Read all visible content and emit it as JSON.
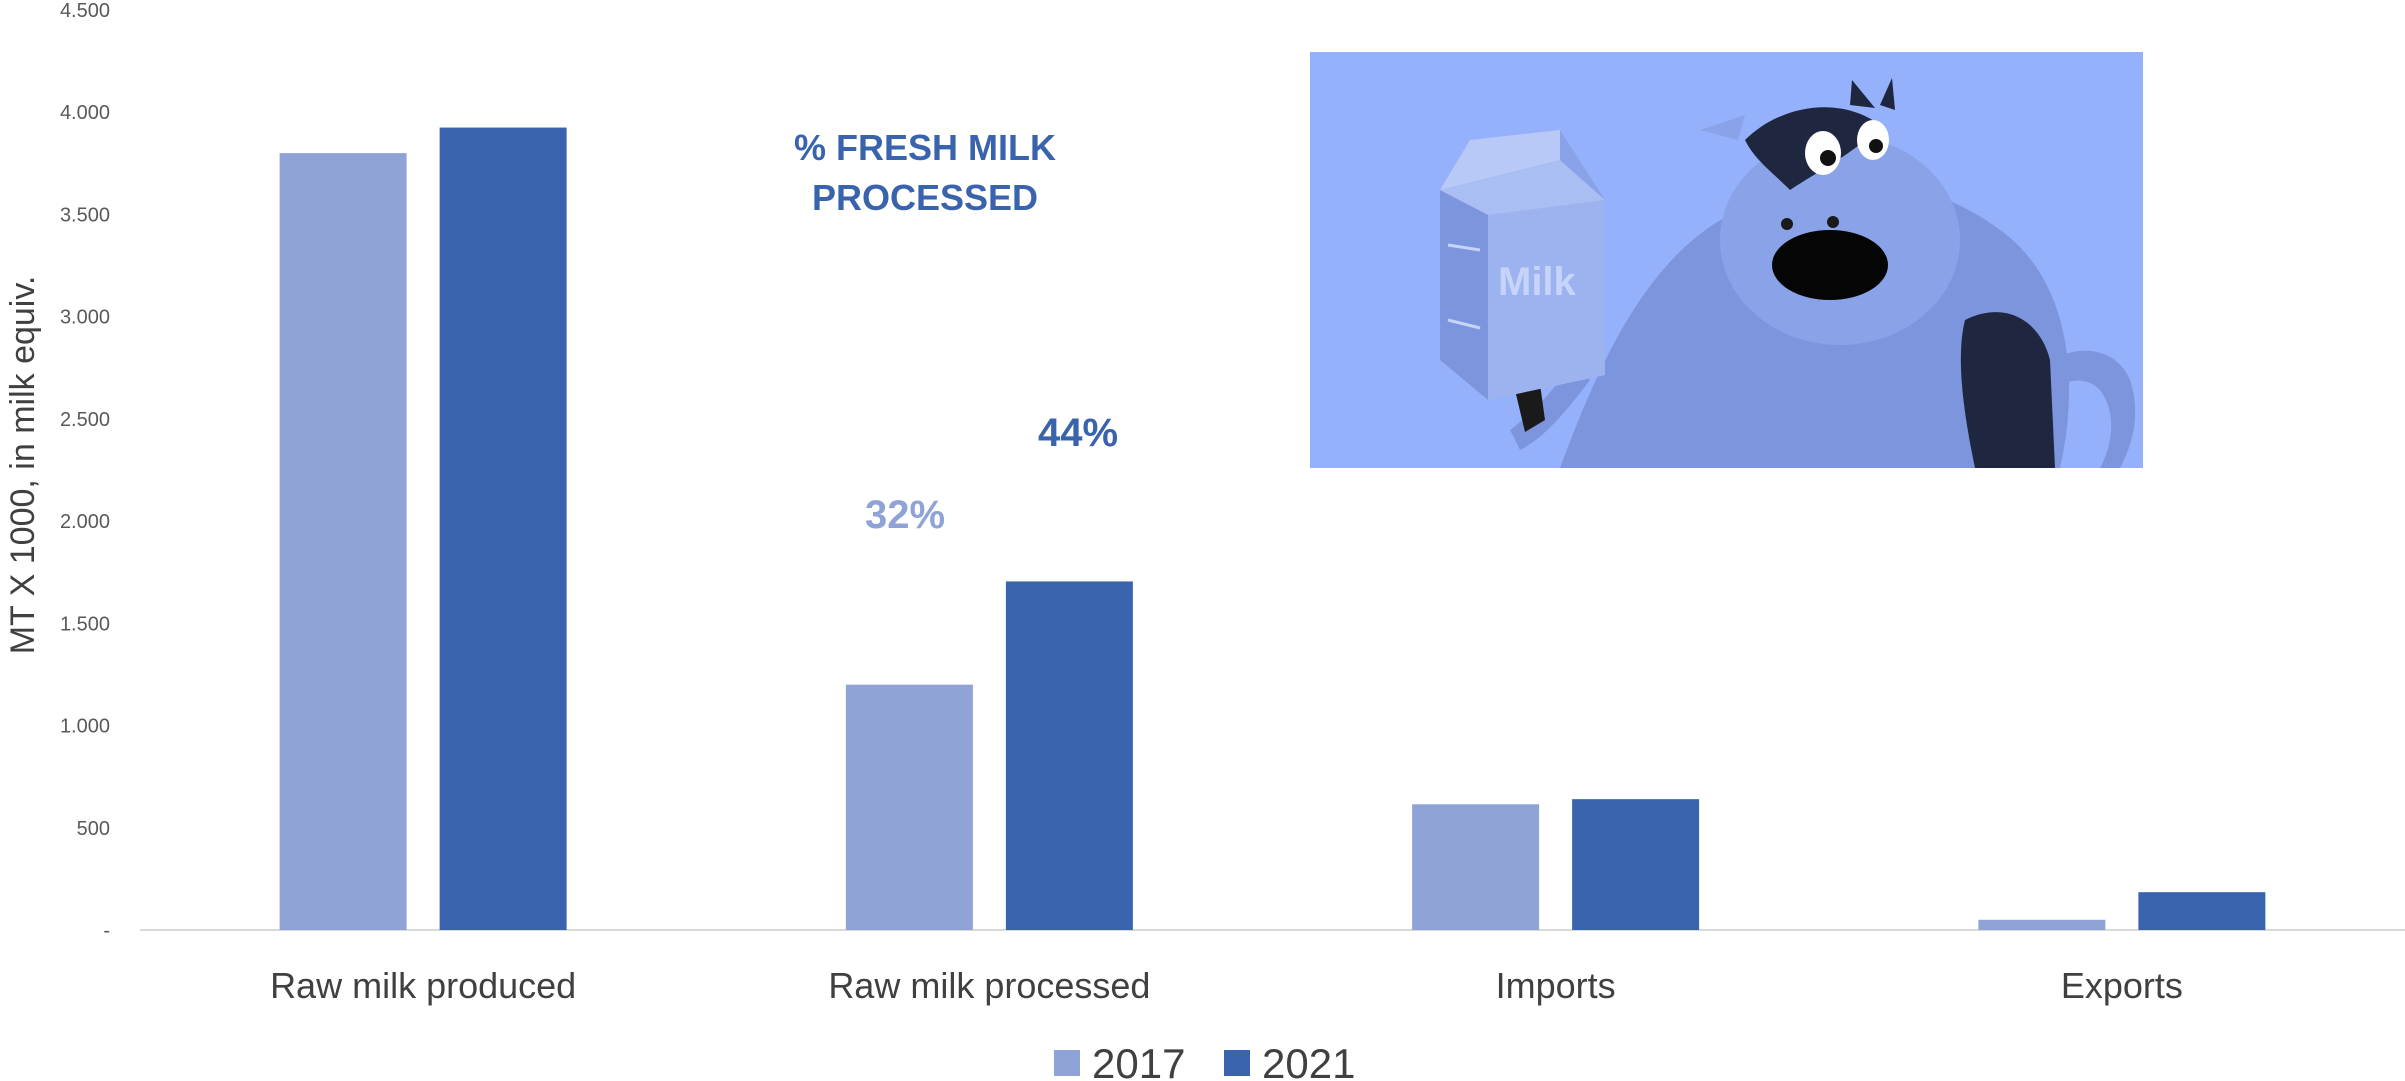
{
  "chart_data": {
    "type": "bar",
    "categories": [
      "Raw milk produced",
      "Raw milk processed",
      "Imports",
      "Exports"
    ],
    "series": [
      {
        "name": "2017",
        "color": "#8fa3d6",
        "values": [
          3800,
          1200,
          615,
          50
        ]
      },
      {
        "name": "2021",
        "color": "#3a63ad",
        "values": [
          3925,
          1705,
          640,
          185
        ]
      }
    ],
    "ylabel": "MT X 1000, in milk equiv.",
    "ylim": [
      0,
      4500
    ],
    "yticks": [
      {
        "value": 0,
        "label": "-"
      },
      {
        "value": 500,
        "label": "500"
      },
      {
        "value": 1000,
        "label": "1.000"
      },
      {
        "value": 1500,
        "label": "1.500"
      },
      {
        "value": 2000,
        "label": "2.000"
      },
      {
        "value": 2500,
        "label": "2.500"
      },
      {
        "value": 3000,
        "label": "3.000"
      },
      {
        "value": 3500,
        "label": "3.500"
      },
      {
        "value": 4000,
        "label": "4.000"
      },
      {
        "value": 4500,
        "label": "4.500"
      }
    ],
    "legend": {
      "placement": "bottom",
      "entries": [
        "2017",
        "2021"
      ]
    },
    "annotations": {
      "title": [
        "% FRESH MILK",
        "PROCESSED"
      ],
      "pct_2017": "32%",
      "pct_2021": "44%"
    },
    "grid": false
  },
  "illustration": {
    "carton_text": "Milk"
  }
}
